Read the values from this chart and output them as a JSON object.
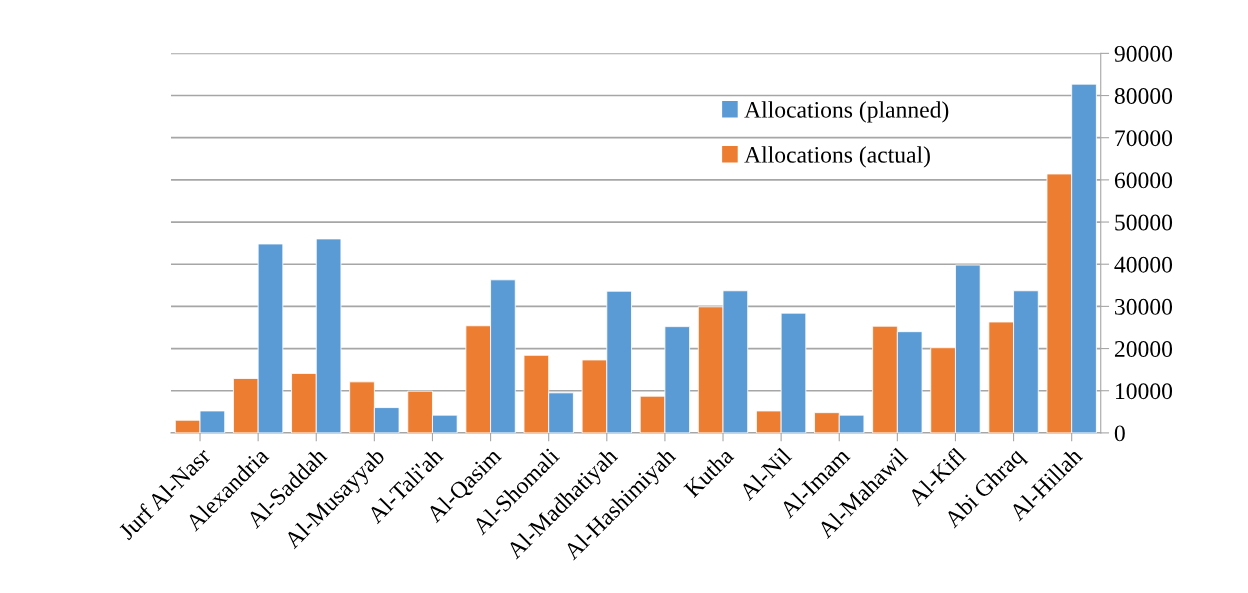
{
  "chart_data": {
    "type": "bar",
    "categories": [
      "Jurf Al-Nasr",
      "Alexandria",
      "Al-Saddah",
      "Al-Musayyab",
      "Al-Tali'ah",
      "Al-Qasim",
      "Al-Shomali",
      "Al-Madhatiyah",
      "Al-Hashimiyah",
      "Kutha",
      "Al-Nil",
      "Al-Imam",
      "Al-Mahawil",
      "Al-Kifl",
      "Abi Ghraq",
      "Al-Hillah"
    ],
    "series": [
      {
        "name": "Allocations (actual)",
        "color": "#ed7d31",
        "values": [
          3000,
          12900,
          14100,
          12100,
          9900,
          25400,
          18400,
          17300,
          8700,
          29900,
          5200,
          4800,
          25300,
          20200,
          26300,
          61400
        ]
      },
      {
        "name": "Allocations (planned)",
        "color": "#5b9bd5",
        "values": [
          5200,
          44800,
          46000,
          6000,
          4200,
          36300,
          9500,
          33600,
          25200,
          33700,
          28400,
          4200,
          24000,
          39800,
          33700,
          82700
        ]
      }
    ],
    "ylim": [
      0,
      90000
    ],
    "yticks": [
      0,
      10000,
      20000,
      30000,
      40000,
      50000,
      60000,
      70000,
      80000,
      90000
    ],
    "grid": "y",
    "legend": "top right"
  }
}
